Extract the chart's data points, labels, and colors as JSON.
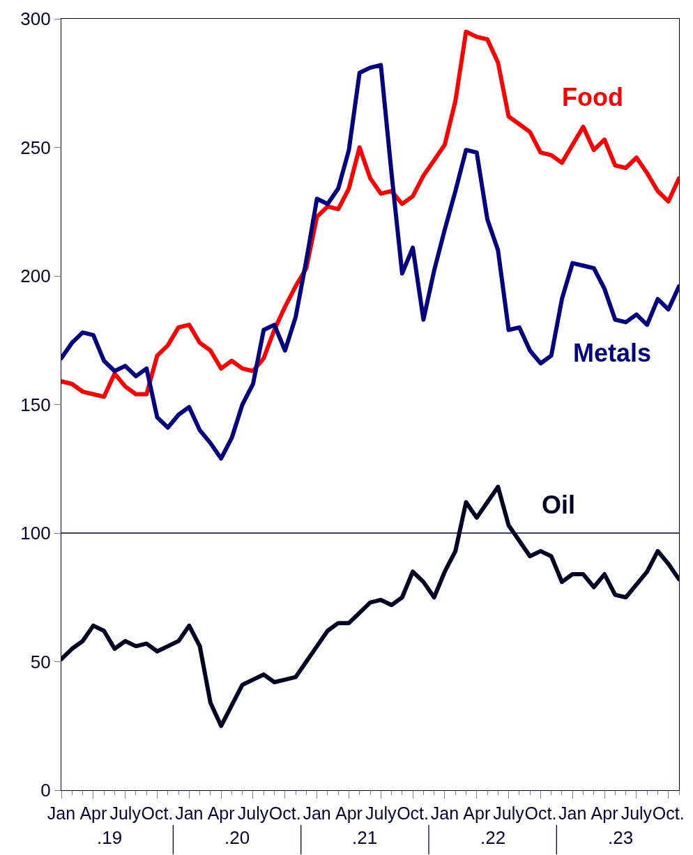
{
  "chart_data": {
    "type": "line",
    "categories": [
      "Jan",
      null,
      null,
      "Apr",
      null,
      null,
      "July",
      null,
      null,
      "Oct.",
      null,
      null,
      "Jan",
      null,
      null,
      "Apr",
      null,
      null,
      "July",
      null,
      null,
      "Oct.",
      null,
      null,
      "Jan",
      null,
      null,
      "Apr",
      null,
      null,
      "July",
      null,
      null,
      "Oct.",
      null,
      null,
      "Jan",
      null,
      null,
      "Apr",
      null,
      null,
      "July",
      null,
      null,
      "Oct.",
      null,
      null,
      "Jan",
      null,
      null,
      "Apr",
      null,
      null,
      "July",
      null,
      null,
      "Oct.",
      null
    ],
    "series": [
      {
        "name": "Food",
        "color": "#ff0000",
        "values": [
          159,
          158,
          155,
          154,
          153,
          162,
          157,
          154,
          154,
          169,
          173,
          180,
          181,
          174,
          171,
          164,
          167,
          164,
          163,
          168,
          179,
          188,
          196,
          203,
          223,
          227,
          226,
          234,
          250,
          238,
          232,
          233,
          228,
          231,
          239,
          245,
          251,
          268,
          295,
          293,
          292,
          283,
          262,
          259,
          256,
          248,
          247,
          244,
          251,
          258,
          249,
          253,
          243,
          242,
          246,
          240,
          233,
          229,
          238
        ]
      },
      {
        "name": "Metals",
        "color": "#000080",
        "values": [
          168,
          174,
          178,
          177,
          167,
          163,
          165,
          161,
          164,
          145,
          141,
          146,
          149,
          140,
          135,
          129,
          137,
          150,
          158,
          179,
          181,
          171,
          184,
          206,
          230,
          228,
          234,
          249,
          279,
          281,
          282,
          240,
          201,
          211,
          183,
          202,
          218,
          233,
          249,
          248,
          222,
          210,
          179,
          180,
          171,
          166,
          169,
          191,
          205,
          204,
          203,
          195,
          183,
          182,
          185,
          181,
          191,
          187,
          196
        ]
      },
      {
        "name": "Oil",
        "color": "#000022",
        "values": [
          51,
          55,
          58,
          64,
          62,
          55,
          58,
          56,
          57,
          54,
          56,
          58,
          64,
          56,
          34,
          25,
          33,
          41,
          43,
          45,
          42,
          43,
          44,
          50,
          56,
          62,
          65,
          65,
          69,
          73,
          74,
          72,
          75,
          85,
          81,
          75,
          85,
          93,
          112,
          106,
          112,
          118,
          103,
          97,
          91,
          93,
          91,
          81,
          84,
          84,
          79,
          84,
          76,
          75,
          80,
          85,
          93,
          88,
          82
        ]
      }
    ],
    "ylim": [
      0,
      300
    ],
    "yticks": [
      0,
      50,
      100,
      150,
      200,
      250,
      300
    ],
    "ref_lines": [
      {
        "axis": "y",
        "value": 100,
        "color": "#000033"
      }
    ],
    "annotations": [
      ".19",
      ".20",
      ".21",
      ".22",
      ".23"
    ],
    "legend": false
  }
}
